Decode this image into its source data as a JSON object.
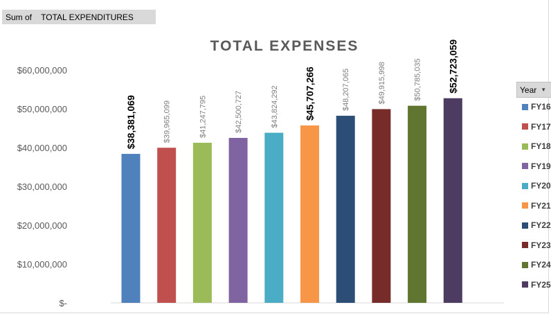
{
  "pivot": {
    "field_label": "Sum of    TOTAL EXPENDITURES",
    "legend_field": "Year",
    "legend_dropdown_icon": "dropdown-arrow-icon"
  },
  "chart_data": {
    "type": "bar",
    "title": "TOTAL EXPENSES",
    "xlabel": "",
    "ylabel": "",
    "ylim": [
      0,
      60000000
    ],
    "yticks": [
      0,
      10000000,
      20000000,
      30000000,
      40000000,
      50000000,
      60000000
    ],
    "ytick_labels": [
      "$-",
      "$10,000,000",
      "$20,000,000",
      "$30,000,000",
      "$40,000,000",
      "$50,000,000",
      "$60,000,000"
    ],
    "grid": false,
    "legend_position": "right",
    "categories": [
      "FY16",
      "FY17",
      "FY18",
      "FY19",
      "FY20",
      "FY21",
      "FY22",
      "FY23",
      "FY24",
      "FY25"
    ],
    "values": [
      38381069,
      39965099,
      41247795,
      42500727,
      43824292,
      45707266,
      48207065,
      49915998,
      50785035,
      52723059
    ],
    "data_labels": [
      "$38,381,069",
      "$39,965,099",
      "$41,247,795",
      "$42,500,727",
      "$43,824,292",
      "$45,707,266",
      "$48,207,065",
      "$49,915,998",
      "$50,785,035",
      "$52,723,059"
    ],
    "bold_labels": [
      true,
      false,
      false,
      false,
      false,
      true,
      false,
      false,
      false,
      true
    ],
    "colors": [
      "#4f81bd",
      "#c0504d",
      "#9bbb59",
      "#8064a2",
      "#4bacc6",
      "#f79646",
      "#2c4d75",
      "#772c2a",
      "#5f7530",
      "#4d3b62"
    ]
  }
}
